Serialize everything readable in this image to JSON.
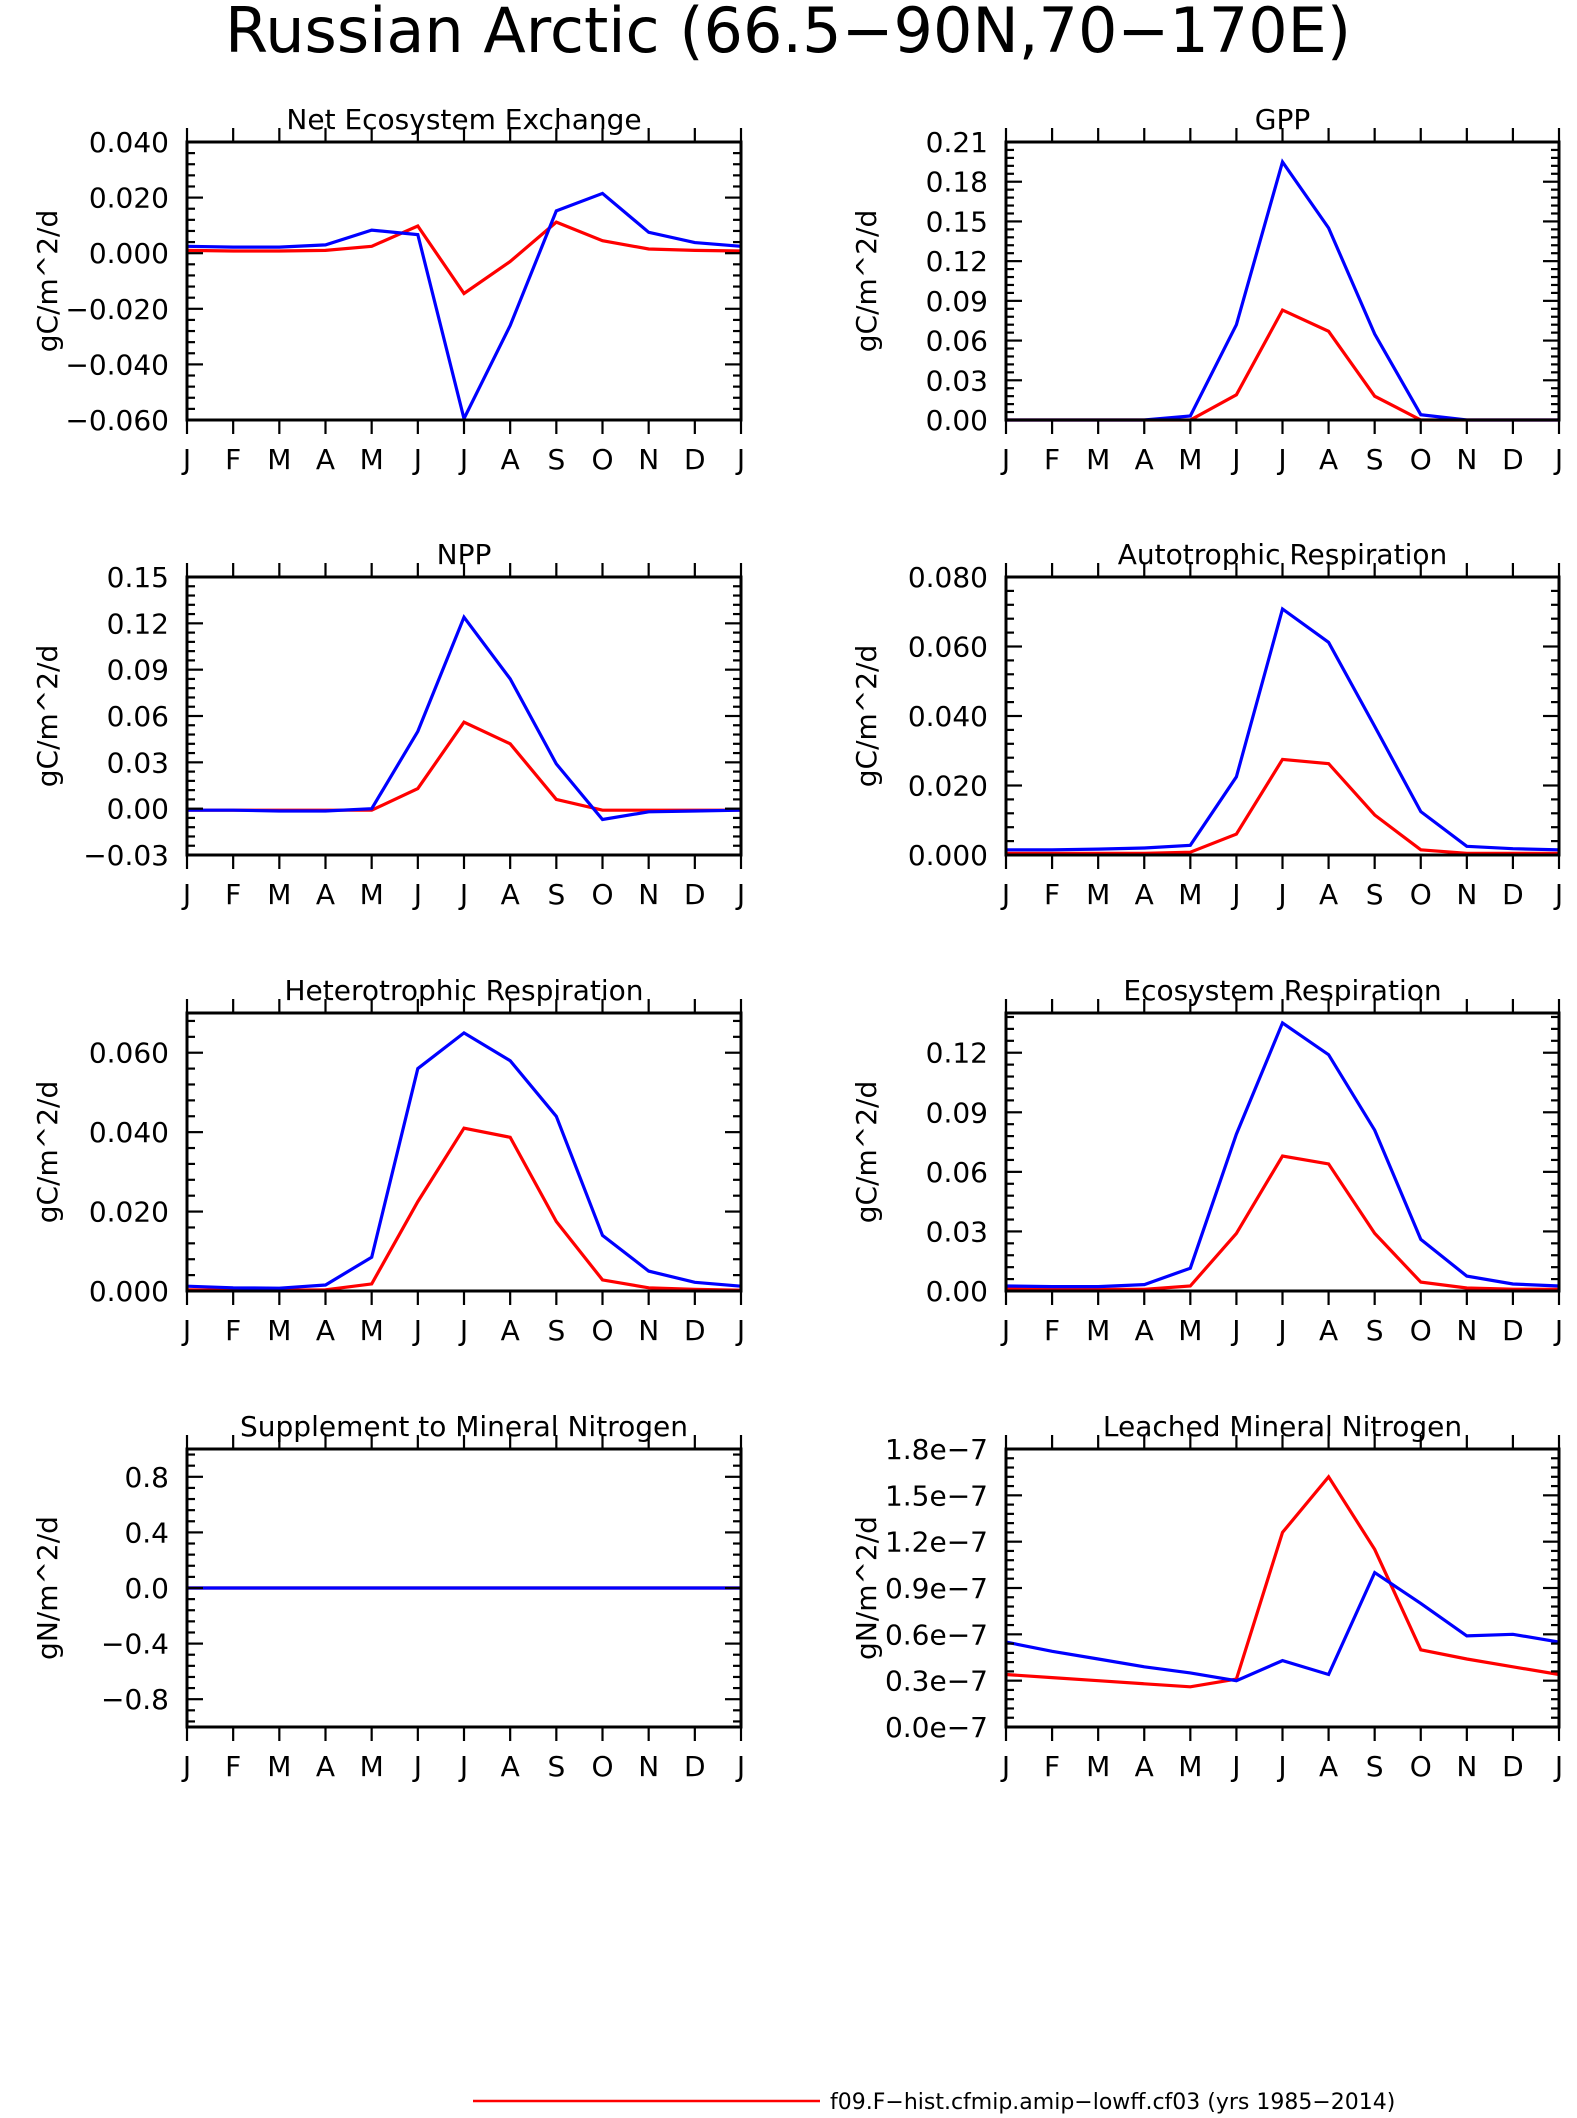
{
  "title": "Russian Arctic (66.5−90N,70−170E)",
  "legend": {
    "entries": [
      {
        "label": "f09.F−hist.cfmip.amip−lowff.cf03 (yrs 1985−2014)",
        "color": "#ff0000"
      }
    ],
    "placement": "bottom"
  },
  "colors": {
    "series_red": "#ff0000",
    "series_blue": "#0000ff"
  },
  "chart_data": [
    {
      "type": "line",
      "title": "Net Ecosystem Exchange",
      "ylabel": "gC/m^2/d",
      "xlabel": "",
      "x": [
        "J",
        "F",
        "M",
        "A",
        "M",
        "J",
        "J",
        "A",
        "S",
        "O",
        "N",
        "D",
        "J"
      ],
      "ylim": [
        -0.06,
        0.04
      ],
      "yticks": [
        -0.06,
        -0.04,
        -0.02,
        0.0,
        0.02,
        0.04
      ],
      "ytick_labels": [
        "−0.060",
        "−0.040",
        "−0.020",
        "0.000",
        "0.020",
        "0.040"
      ],
      "series": [
        {
          "color": "#ff0000",
          "values": [
            0.001,
            0.0008,
            0.0008,
            0.001,
            0.0025,
            0.0098,
            -0.0145,
            -0.003,
            0.0112,
            0.0045,
            0.0015,
            0.001,
            0.0008
          ]
        },
        {
          "color": "#0000ff",
          "values": [
            0.0025,
            0.0022,
            0.0022,
            0.003,
            0.0083,
            0.0067,
            -0.0595,
            -0.026,
            0.0152,
            0.0215,
            0.0075,
            0.0038,
            0.0025
          ]
        }
      ]
    },
    {
      "type": "line",
      "title": "GPP",
      "ylabel": "gC/m^2/d",
      "xlabel": "",
      "x": [
        "J",
        "F",
        "M",
        "A",
        "M",
        "J",
        "J",
        "A",
        "S",
        "O",
        "N",
        "D",
        "J"
      ],
      "ylim": [
        0,
        0.21
      ],
      "yticks": [
        0,
        0.03,
        0.06,
        0.09,
        0.12,
        0.15,
        0.18,
        0.21
      ],
      "ytick_labels": [
        "0.00",
        "0.03",
        "0.06",
        "0.09",
        "0.12",
        "0.15",
        "0.18",
        "0.21"
      ],
      "series": [
        {
          "color": "#ff0000",
          "values": [
            0,
            0,
            0,
            0,
            0,
            0.019,
            0.083,
            0.067,
            0.018,
            0,
            0,
            0,
            0
          ]
        },
        {
          "color": "#0000ff",
          "values": [
            0,
            0,
            0,
            0,
            0.003,
            0.072,
            0.195,
            0.145,
            0.065,
            0.004,
            0,
            0,
            0
          ]
        }
      ]
    },
    {
      "type": "line",
      "title": "NPP",
      "ylabel": "gC/m^2/d",
      "xlabel": "",
      "x": [
        "J",
        "F",
        "M",
        "A",
        "M",
        "J",
        "J",
        "A",
        "S",
        "O",
        "N",
        "D",
        "J"
      ],
      "ylim": [
        -0.03,
        0.15
      ],
      "yticks": [
        -0.03,
        0,
        0.03,
        0.06,
        0.09,
        0.12,
        0.15
      ],
      "ytick_labels": [
        "−0.03",
        "0.00",
        "0.03",
        "0.06",
        "0.09",
        "0.12",
        "0.15"
      ],
      "series": [
        {
          "color": "#ff0000",
          "values": [
            -0.001,
            -0.001,
            -0.001,
            -0.001,
            -0.001,
            0.013,
            0.056,
            0.042,
            0.006,
            -0.001,
            -0.001,
            -0.001,
            -0.001
          ]
        },
        {
          "color": "#0000ff",
          "values": [
            -0.001,
            -0.001,
            -0.0015,
            -0.0015,
            0,
            0.05,
            0.124,
            0.084,
            0.029,
            -0.007,
            -0.002,
            -0.0015,
            -0.001
          ]
        }
      ]
    },
    {
      "type": "line",
      "title": "Autotrophic Respiration",
      "ylabel": "gC/m^2/d",
      "xlabel": "",
      "x": [
        "J",
        "F",
        "M",
        "A",
        "M",
        "J",
        "J",
        "A",
        "S",
        "O",
        "N",
        "D",
        "J"
      ],
      "ylim": [
        0,
        0.08
      ],
      "yticks": [
        0,
        0.02,
        0.04,
        0.06,
        0.08
      ],
      "ytick_labels": [
        "0.000",
        "0.020",
        "0.040",
        "0.060",
        "0.080"
      ],
      "series": [
        {
          "color": "#ff0000",
          "values": [
            0.0005,
            0.0005,
            0.0005,
            0.0005,
            0.0008,
            0.006,
            0.0275,
            0.0263,
            0.0115,
            0.0015,
            0.0005,
            0.0005,
            0.0005
          ]
        },
        {
          "color": "#0000ff",
          "values": [
            0.0015,
            0.0015,
            0.0017,
            0.002,
            0.0028,
            0.0225,
            0.0708,
            0.0612,
            0.037,
            0.0125,
            0.0025,
            0.0018,
            0.0015
          ]
        }
      ]
    },
    {
      "type": "line",
      "title": "Heterotrophic Respiration",
      "ylabel": "gC/m^2/d",
      "xlabel": "",
      "x": [
        "J",
        "F",
        "M",
        "A",
        "M",
        "J",
        "J",
        "A",
        "S",
        "O",
        "N",
        "D",
        "J"
      ],
      "ylim": [
        0,
        0.07
      ],
      "yticks": [
        0,
        0.02,
        0.04,
        0.06
      ],
      "ytick_labels": [
        "0.000",
        "0.020",
        "0.040",
        "0.060"
      ],
      "series": [
        {
          "color": "#ff0000",
          "values": [
            0.0003,
            0.0002,
            0.0002,
            0.0003,
            0.0018,
            0.0225,
            0.041,
            0.0387,
            0.0175,
            0.0028,
            0.0008,
            0.0004,
            0.0002
          ]
        },
        {
          "color": "#0000ff",
          "values": [
            0.0012,
            0.0008,
            0.0007,
            0.0015,
            0.0085,
            0.056,
            0.065,
            0.058,
            0.044,
            0.014,
            0.005,
            0.0022,
            0.0012
          ]
        }
      ]
    },
    {
      "type": "line",
      "title": "Ecosystem Respiration",
      "ylabel": "gC/m^2/d",
      "xlabel": "",
      "x": [
        "J",
        "F",
        "M",
        "A",
        "M",
        "J",
        "J",
        "A",
        "S",
        "O",
        "N",
        "D",
        "J"
      ],
      "ylim": [
        0,
        0.14
      ],
      "yticks": [
        0,
        0.03,
        0.06,
        0.09,
        0.12
      ],
      "ytick_labels": [
        "0.00",
        "0.03",
        "0.06",
        "0.09",
        "0.12"
      ],
      "series": [
        {
          "color": "#ff0000",
          "values": [
            0.001,
            0.0008,
            0.0008,
            0.0008,
            0.0025,
            0.029,
            0.068,
            0.064,
            0.029,
            0.0045,
            0.0015,
            0.0009,
            0.0008
          ]
        },
        {
          "color": "#0000ff",
          "values": [
            0.0025,
            0.0022,
            0.0022,
            0.0032,
            0.0115,
            0.079,
            0.135,
            0.119,
            0.081,
            0.026,
            0.0075,
            0.0035,
            0.0025
          ]
        }
      ]
    },
    {
      "type": "line",
      "title": "Supplement to Mineral Nitrogen",
      "ylabel": "gN/m^2/d",
      "xlabel": "",
      "x": [
        "J",
        "F",
        "M",
        "A",
        "M",
        "J",
        "J",
        "A",
        "S",
        "O",
        "N",
        "D",
        "J"
      ],
      "ylim": [
        -1.0,
        1.0
      ],
      "yticks": [
        -0.8,
        -0.4,
        0,
        0.4,
        0.8
      ],
      "ytick_labels": [
        "−0.8",
        "−0.4",
        "0.0",
        "0.4",
        "0.8"
      ],
      "series": [
        {
          "color": "#ff0000",
          "values": [
            0,
            0,
            0,
            0,
            0,
            0,
            0,
            0,
            0,
            0,
            0,
            0,
            0
          ]
        },
        {
          "color": "#0000ff",
          "values": [
            0,
            0,
            0,
            0,
            0,
            0,
            0,
            0,
            0,
            0,
            0,
            0,
            0
          ]
        }
      ]
    },
    {
      "type": "line",
      "title": "Leached Mineral Nitrogen",
      "ylabel": "gN/m^2/d",
      "xlabel": "",
      "x": [
        "J",
        "F",
        "M",
        "A",
        "M",
        "J",
        "J",
        "A",
        "S",
        "O",
        "N",
        "D",
        "J"
      ],
      "ylim": [
        0,
        1.8e-07
      ],
      "yticks": [
        0,
        3e-08,
        6e-08,
        9e-08,
        1.2e-07,
        1.5e-07,
        1.8e-07
      ],
      "ytick_labels": [
        "0.0e−7",
        "0.3e−7",
        "0.6e−7",
        "0.9e−7",
        "1.2e−7",
        "1.5e−7",
        "1.8e−7"
      ],
      "series": [
        {
          "color": "#ff0000",
          "values": [
            3.4e-08,
            3.2e-08,
            3e-08,
            2.8e-08,
            2.6e-08,
            3.1e-08,
            1.26e-07,
            1.62e-07,
            1.15e-07,
            5e-08,
            4.4e-08,
            3.9e-08,
            3.4e-08
          ]
        },
        {
          "color": "#0000ff",
          "values": [
            5.5e-08,
            4.9e-08,
            4.4e-08,
            3.9e-08,
            3.5e-08,
            3e-08,
            4.3e-08,
            3.4e-08,
            1e-07,
            8e-08,
            5.9e-08,
            6e-08,
            5.5e-08
          ]
        }
      ]
    }
  ]
}
